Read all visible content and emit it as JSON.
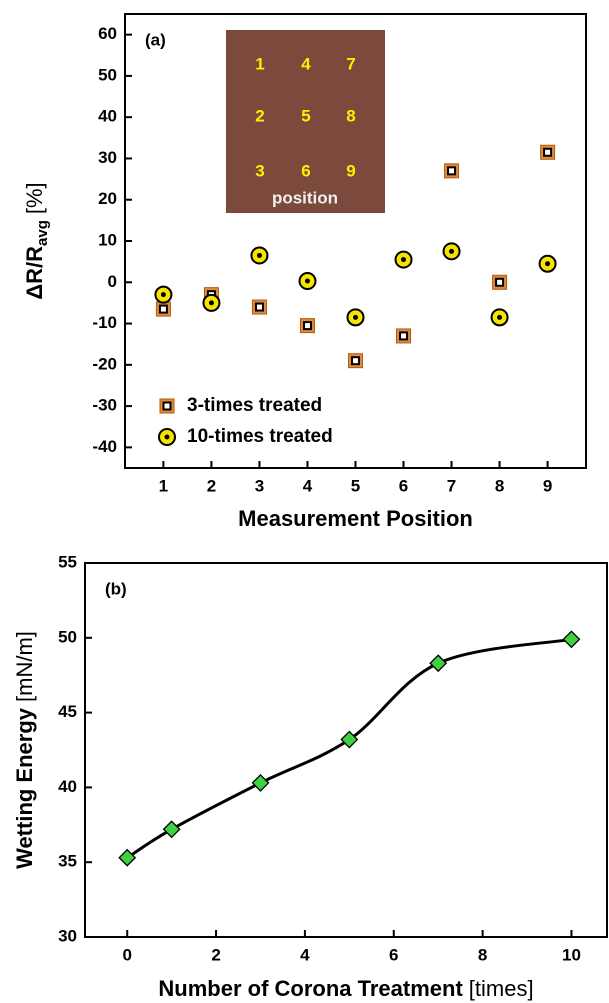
{
  "chart_data": [
    {
      "type": "scatter",
      "panel_label": "(a)",
      "xlabel": "Measurement Position",
      "ylabel": "ΔR/R",
      "ylabel_sub": "avg",
      "ylabel_unit": "[%]",
      "x": [
        1,
        2,
        3,
        4,
        5,
        6,
        7,
        8,
        9
      ],
      "series": [
        {
          "name": "3-times treated",
          "color": "#e08a3c",
          "marker": "square",
          "values": [
            -6.5,
            -3,
            -6,
            -10.5,
            -19,
            -13,
            27,
            0,
            31.5
          ]
        },
        {
          "name": "10-times treated",
          "color": "#f5e400",
          "marker": "circle",
          "values": [
            -3,
            -5,
            6.5,
            0.3,
            -8.5,
            5.5,
            7.5,
            -8.5,
            4.5
          ]
        }
      ],
      "xlim": [
        0.2,
        9.8
      ],
      "xticks": [
        1,
        2,
        3,
        4,
        5,
        6,
        7,
        8,
        9
      ],
      "ylim": [
        -45,
        65
      ],
      "yticks": [
        -40,
        -30,
        -20,
        -10,
        0,
        10,
        20,
        30,
        40,
        50,
        60
      ],
      "legend": "lower left",
      "inset": {
        "labels": [
          "1",
          "4",
          "7",
          "2",
          "5",
          "8",
          "3",
          "6",
          "9"
        ],
        "caption": "position"
      }
    },
    {
      "type": "line",
      "panel_label": "(b)",
      "xlabel": "Number of Corona Treatment",
      "xlabel_unit": "[times]",
      "ylabel": "Wetting Energy",
      "ylabel_unit": "[mN/m]",
      "x": [
        0,
        1,
        3,
        5,
        7,
        10
      ],
      "series": [
        {
          "name": null,
          "color": "#3fd13f",
          "marker": "diamond",
          "values": [
            35.3,
            37.2,
            40.3,
            43.2,
            48.3,
            49.9
          ]
        }
      ],
      "xlim": [
        -0.95,
        10.8
      ],
      "xticks": [
        0,
        2,
        4,
        6,
        8,
        10
      ],
      "ylim": [
        30,
        55
      ],
      "yticks": [
        30,
        35,
        40,
        45,
        50,
        55
      ]
    }
  ]
}
